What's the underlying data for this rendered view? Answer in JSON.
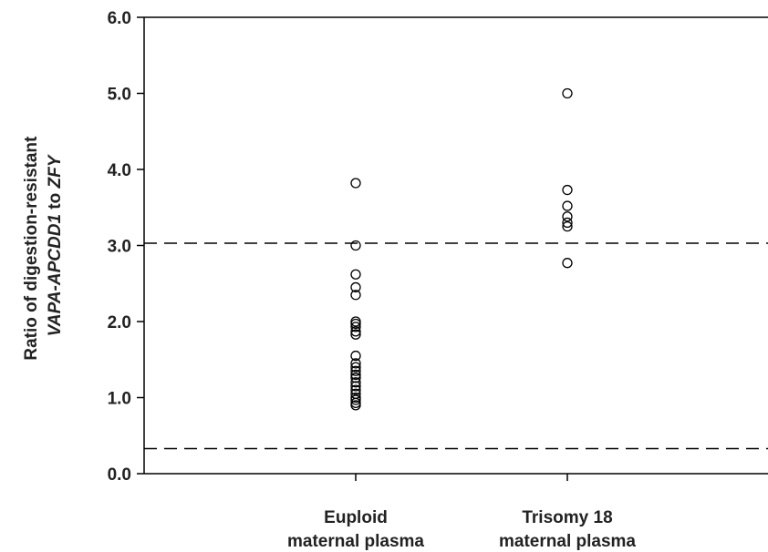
{
  "chart_data": {
    "type": "scatter",
    "ylabel_line1": "Ratio of digestion-resistant",
    "ylabel_line2_parts": [
      {
        "text": "VAPA-APCDD1",
        "italic": true
      },
      {
        "text": " to ",
        "italic": false
      },
      {
        "text": "ZFY",
        "italic": true
      }
    ],
    "ylim": [
      0,
      6
    ],
    "y_ticks": [
      "0.0",
      "1.0",
      "2.0",
      "3.0",
      "4.0",
      "5.0",
      "6.0"
    ],
    "grid": false,
    "reference_lines": [
      3.03,
      0.33
    ],
    "categories": [
      {
        "line1": "Euploid",
        "line2": "maternal plasma"
      },
      {
        "line1": "Trisomy 18",
        "line2": "maternal plasma"
      }
    ],
    "series": [
      {
        "values": [
          3.82,
          3.0,
          2.62,
          2.45,
          2.35,
          2.0,
          1.97,
          1.93,
          1.87,
          1.83,
          1.55,
          1.45,
          1.4,
          1.35,
          1.3,
          1.26,
          1.2,
          1.15,
          1.1,
          1.05,
          1.0,
          0.97,
          0.93,
          0.9
        ]
      },
      {
        "values": [
          5.0,
          3.73,
          3.52,
          3.38,
          3.3,
          3.25,
          2.77
        ]
      }
    ]
  }
}
